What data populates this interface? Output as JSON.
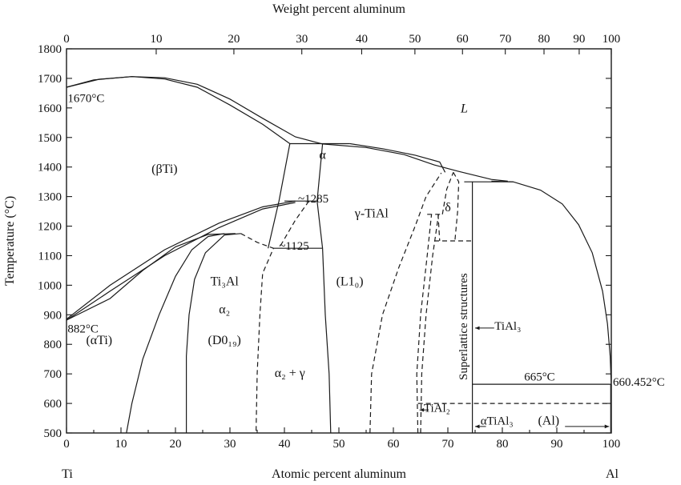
{
  "chart_data": {
    "type": "line",
    "title": "",
    "top_axis": {
      "label": "Weight percent aluminum",
      "ticks": [
        0,
        10,
        20,
        30,
        40,
        50,
        60,
        70,
        80,
        90,
        100
      ]
    },
    "bottom_axis": {
      "label": "Atomic percent aluminum",
      "xlim": [
        0,
        100
      ],
      "ticks": [
        0,
        10,
        20,
        30,
        40,
        50,
        60,
        70,
        80,
        90,
        100
      ],
      "end_labels": [
        "Ti",
        "Al"
      ]
    },
    "y_axis": {
      "label": "Temperature (°C)",
      "ylim": [
        500,
        1800
      ],
      "ticks": [
        500,
        600,
        700,
        800,
        900,
        1000,
        1100,
        1200,
        1300,
        1400,
        1500,
        1600,
        1700,
        1800
      ]
    },
    "grid": false,
    "regions": [
      {
        "name": "liquid",
        "text": "L",
        "x": 73,
        "y": 1585
      },
      {
        "name": "beta-ti",
        "text": "(βTi)",
        "x": 18,
        "y": 1380
      },
      {
        "name": "alpha",
        "text": "α",
        "x": 47,
        "y": 1428
      },
      {
        "name": "gamma-tial",
        "text": "γ-TiAl",
        "x": 56,
        "y": 1230
      },
      {
        "name": "delta",
        "text": "δ",
        "x": 70,
        "y": 1250
      },
      {
        "name": "ti3al",
        "text": "Ti₃Al",
        "x": 29,
        "y": 1000
      },
      {
        "name": "alpha2",
        "text": "α₂",
        "x": 29,
        "y": 905
      },
      {
        "name": "d019",
        "text": "(D0₁₉)",
        "x": 29,
        "y": 800
      },
      {
        "name": "l10",
        "text": "(L1₀)",
        "x": 52,
        "y": 1000
      },
      {
        "name": "alpha2-gamma",
        "text": "α₂ + γ",
        "x": 41,
        "y": 690
      },
      {
        "name": "alpha-ti",
        "text": "(αTi)",
        "x": 6,
        "y": 800
      },
      {
        "name": "al",
        "text": "(Al)",
        "x": 88.5,
        "y": 528
      }
    ],
    "annotations": [
      {
        "name": "ti-melting",
        "text": "1670°C",
        "x": 0.2,
        "y": 1620
      },
      {
        "name": "beta-transus",
        "text": "882°C",
        "x": 0.2,
        "y": 840
      },
      {
        "name": "eutectoid-1285",
        "text": "~1285",
        "x": 42.5,
        "y": 1280
      },
      {
        "name": "eutectoid-1125",
        "text": "~1125",
        "x": 39,
        "y": 1120
      },
      {
        "name": "peritectic-665",
        "text": "665°C",
        "x": 84,
        "y": 677
      },
      {
        "name": "al-melting",
        "text": "660.452°C",
        "x": 100.3,
        "y": 660
      },
      {
        "name": "tial3-label",
        "text": "TiAl₃",
        "x": 81,
        "y": 850
      },
      {
        "name": "tial2-label",
        "text": "TiAl₂",
        "x": 68,
        "y": 572
      },
      {
        "name": "alpha-tial3-label",
        "text": "αTiAl₃",
        "x": 79,
        "y": 528
      },
      {
        "name": "superlattice-label",
        "text": "Superlattice structures",
        "x": 73.5,
        "y": 860
      }
    ],
    "solid_lines": [
      {
        "name": "liquidus-left",
        "points": [
          [
            0,
            1670
          ],
          [
            5,
            1695
          ],
          [
            12,
            1706
          ],
          [
            18,
            1702
          ],
          [
            24,
            1680
          ],
          [
            30,
            1630
          ],
          [
            36,
            1565
          ],
          [
            42,
            1502
          ],
          [
            47,
            1478
          ]
        ]
      },
      {
        "name": "solidus-left",
        "points": [
          [
            0,
            1670
          ],
          [
            6,
            1697
          ],
          [
            12,
            1706
          ],
          [
            18,
            1698
          ],
          [
            24,
            1670
          ],
          [
            30,
            1610
          ],
          [
            36,
            1545
          ],
          [
            41,
            1479
          ]
        ]
      },
      {
        "name": "alpha-solidus-peritectic",
        "points": [
          [
            41,
            1479
          ],
          [
            52,
            1479
          ]
        ]
      },
      {
        "name": "liquidus-mid",
        "points": [
          [
            52,
            1479
          ],
          [
            58,
            1462
          ],
          [
            64,
            1440
          ],
          [
            68.5,
            1417
          ],
          [
            69.5,
            1382
          ]
        ]
      },
      {
        "name": "liquidus-mid-2",
        "points": [
          [
            47,
            1478
          ],
          [
            55,
            1466
          ],
          [
            62,
            1442
          ],
          [
            67.5,
            1407
          ],
          [
            72,
            1385
          ],
          [
            78,
            1358
          ],
          [
            81,
            1352
          ]
        ]
      },
      {
        "name": "liquidus-right",
        "points": [
          [
            78,
            1352
          ],
          [
            82,
            1350
          ],
          [
            87,
            1322
          ],
          [
            91,
            1275
          ],
          [
            94,
            1205
          ],
          [
            96.5,
            1110
          ],
          [
            98.4,
            980
          ],
          [
            99.3,
            870
          ],
          [
            99.8,
            760
          ],
          [
            100,
            661
          ]
        ]
      },
      {
        "name": "alpha-left",
        "points": [
          [
            41,
            1479
          ],
          [
            39,
            1285
          ],
          [
            37,
            1125
          ]
        ]
      },
      {
        "name": "alpha-right",
        "points": [
          [
            47,
            1478
          ],
          [
            46,
            1285
          ],
          [
            47,
            1125
          ]
        ]
      },
      {
        "name": "beta-alpha-upper",
        "points": [
          [
            0,
            885
          ],
          [
            8,
            1000
          ],
          [
            18,
            1120
          ],
          [
            28,
            1210
          ],
          [
            36,
            1265
          ],
          [
            42,
            1285
          ]
        ]
      },
      {
        "name": "beta-alpha-lower",
        "points": [
          [
            0,
            882
          ],
          [
            8,
            980
          ],
          [
            18,
            1100
          ],
          [
            28,
            1195
          ],
          [
            36,
            1258
          ],
          [
            42,
            1280
          ]
        ]
      },
      {
        "name": "eutectoid-1285-line",
        "points": [
          [
            40,
            1285
          ],
          [
            46,
            1285
          ]
        ]
      },
      {
        "name": "alpha-ti3al-upper",
        "points": [
          [
            0,
            882
          ],
          [
            8,
            955
          ],
          [
            14,
            1050
          ],
          [
            20,
            1130
          ],
          [
            26,
            1172
          ],
          [
            31,
            1175
          ]
        ]
      },
      {
        "name": "ti3al-dome-left",
        "points": [
          [
            11,
            500
          ],
          [
            12,
            600
          ],
          [
            14,
            750
          ],
          [
            17,
            900
          ],
          [
            20,
            1030
          ],
          [
            23,
            1120
          ],
          [
            26,
            1165
          ],
          [
            29,
            1175
          ]
        ]
      },
      {
        "name": "ti3al-dome-left-2",
        "points": [
          [
            22,
            500
          ],
          [
            22,
            600
          ],
          [
            22,
            760
          ],
          [
            22.5,
            900
          ],
          [
            23.5,
            1020
          ],
          [
            25.5,
            1110
          ],
          [
            29,
            1170
          ],
          [
            32,
            1175
          ]
        ]
      },
      {
        "name": "eutectoid-1125-line",
        "points": [
          [
            38,
            1125
          ],
          [
            47,
            1125
          ]
        ]
      },
      {
        "name": "gamma-left-boundary",
        "points": [
          [
            47,
            1125
          ],
          [
            47.5,
            900
          ],
          [
            48.2,
            700
          ],
          [
            48.5,
            500
          ]
        ]
      },
      {
        "name": "superlattice-boundary",
        "points": [
          [
            74.5,
            1350
          ],
          [
            74.5,
            500
          ]
        ]
      },
      {
        "name": "peritectic-1350",
        "points": [
          [
            73,
            1350
          ],
          [
            82,
            1350
          ]
        ]
      },
      {
        "name": "peritectic-665-line",
        "points": [
          [
            74.5,
            665
          ],
          [
            99.9,
            665
          ]
        ]
      },
      {
        "name": "al-solvus",
        "points": [
          [
            99.9,
            665
          ],
          [
            99.9,
            500
          ]
        ]
      }
    ],
    "dashed_lines": [
      {
        "name": "alpha-dashed-left",
        "points": [
          [
            44.5,
            1285
          ],
          [
            42,
            1220
          ],
          [
            39,
            1125
          ]
        ]
      },
      {
        "name": "ti3al-dashed-right",
        "points": [
          [
            32,
            1175
          ],
          [
            35,
            1145
          ],
          [
            38,
            1125
          ],
          [
            36,
            1040
          ],
          [
            35.5,
            900
          ],
          [
            35,
            700
          ],
          [
            34.8,
            500
          ]
        ]
      },
      {
        "name": "gamma-right-dashed",
        "points": [
          [
            55.7,
            500
          ],
          [
            56,
            700
          ],
          [
            58,
            900
          ],
          [
            61,
            1060
          ],
          [
            64,
            1200
          ],
          [
            66,
            1300
          ],
          [
            68.8,
            1380
          ]
        ]
      },
      {
        "name": "tial2-left-dashed",
        "points": [
          [
            64.5,
            500
          ],
          [
            64.3,
            700
          ],
          [
            65,
            900
          ],
          [
            66.2,
            1100
          ],
          [
            67,
            1240
          ]
        ]
      },
      {
        "name": "tial2-right-dashed",
        "points": [
          [
            65,
            500
          ],
          [
            65.2,
            700
          ],
          [
            66,
            900
          ],
          [
            67.2,
            1100
          ],
          [
            68.3,
            1240
          ]
        ]
      },
      {
        "name": "tial2-top-dashed",
        "points": [
          [
            66.2,
            1240
          ],
          [
            69,
            1240
          ]
        ]
      },
      {
        "name": "delta-left-dashed",
        "points": [
          [
            69,
            1240
          ],
          [
            69.8,
            1325
          ],
          [
            71,
            1382
          ]
        ]
      },
      {
        "name": "delta-right-dashed",
        "points": [
          [
            71,
            1382
          ],
          [
            72,
            1350
          ],
          [
            71.8,
            1250
          ],
          [
            71.3,
            1150
          ]
        ]
      },
      {
        "name": "delta-bottom-dashed",
        "points": [
          [
            67.5,
            1150
          ],
          [
            74.5,
            1150
          ]
        ]
      },
      {
        "name": "delta-left-bottom",
        "points": [
          [
            68.2,
            1240
          ],
          [
            68.5,
            1150
          ]
        ]
      },
      {
        "name": "alpha-tial3-dashed",
        "points": [
          [
            64.5,
            600
          ],
          [
            99.9,
            600
          ]
        ]
      }
    ]
  }
}
